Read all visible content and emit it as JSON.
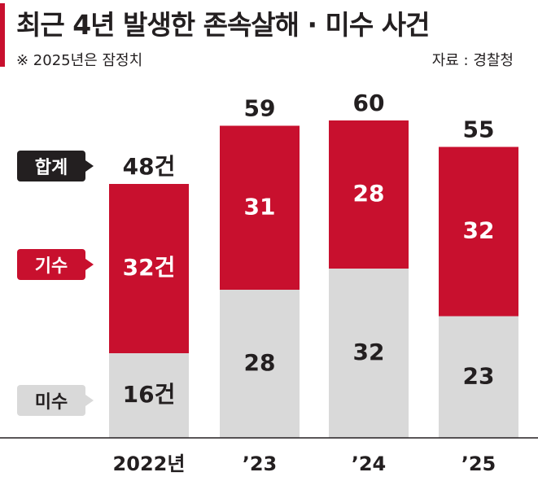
{
  "header": {
    "title": "최근 4년 발생한 존속살해 · 미수 사건",
    "note": "※ 2025년은 잠정치",
    "source": "자료 : 경찰청"
  },
  "legend": {
    "total": "합계",
    "unsolved": "기수",
    "solved": "미수"
  },
  "colors": {
    "accent": "#c8102e",
    "unsolved": "#c8102e",
    "solved": "#d9d9d9",
    "dark": "#231f20"
  },
  "chart_data": {
    "type": "bar",
    "stacked": true,
    "categories": [
      "2022년",
      "’23",
      "’24",
      "’25"
    ],
    "series": [
      {
        "name": "미수",
        "values": [
          16,
          28,
          32,
          23
        ],
        "labels": [
          "16건",
          "28",
          "32",
          "23"
        ]
      },
      {
        "name": "기수",
        "values": [
          32,
          31,
          28,
          32
        ],
        "labels": [
          "32건",
          "31",
          "28",
          "32"
        ]
      }
    ],
    "totals": [
      48,
      59,
      60,
      55
    ],
    "total_labels": [
      "48건",
      "59",
      "60",
      "55"
    ],
    "ylim": [
      0,
      60
    ],
    "grid": false,
    "legend_position": "left"
  }
}
